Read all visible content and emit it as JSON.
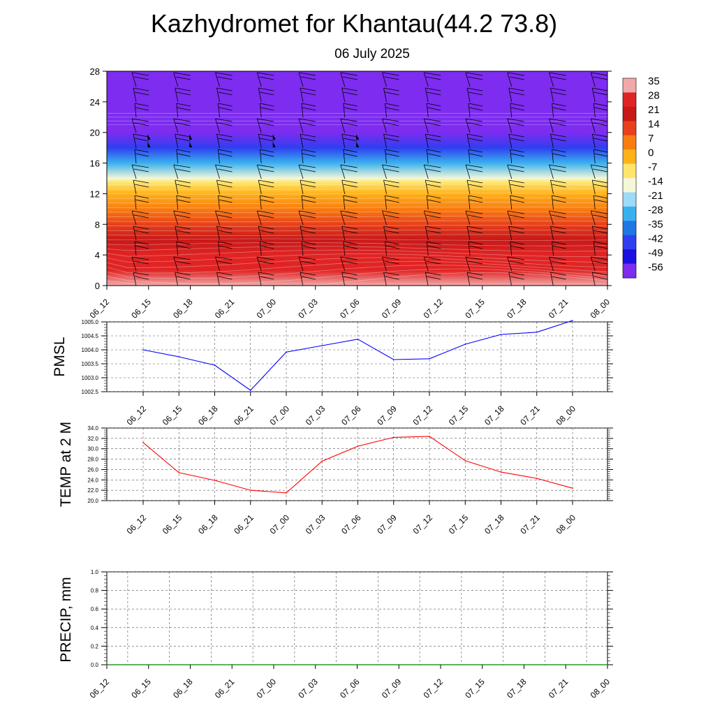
{
  "title": "Kazhydromet for Khantau(44.2 73.8)",
  "subtitle": "06 July 2025",
  "chart_data": [
    {
      "type": "heatmap",
      "name": "vertical-temperature-section",
      "ylim": [
        0,
        28
      ],
      "yticks": [
        "0",
        "4",
        "8",
        "12",
        "16",
        "20",
        "24",
        "28"
      ],
      "x": [
        "06_12",
        "06_15",
        "06_18",
        "06_21",
        "07_00",
        "07_03",
        "07_06",
        "07_09",
        "07_12",
        "07_15",
        "07_18",
        "07_21",
        "08_00"
      ],
      "colorbar": {
        "labels": [
          "35",
          "28",
          "21",
          "14",
          "7",
          "0",
          "-7",
          "-14",
          "-21",
          "-28",
          "-35",
          "-42",
          "-49",
          "-56"
        ],
        "colors": [
          "#f2a9a9",
          "#e02424",
          "#c81818",
          "#e8401a",
          "#f97c10",
          "#ffb11a",
          "#ffe66b",
          "#f4f7d8",
          "#9cdaf8",
          "#3ab1ef",
          "#1f77e4",
          "#2f3ff0",
          "#1a10e0",
          "#7d2cf0"
        ]
      },
      "temperature_profile": {
        "heights": [
          0,
          2,
          4,
          6,
          8,
          10,
          12,
          13.5,
          14,
          16,
          18,
          20,
          21,
          22,
          24,
          28
        ],
        "values": [
          33,
          30,
          26,
          21,
          14,
          7,
          0,
          -7,
          -14,
          -30,
          -42,
          -54,
          -58,
          -60,
          -62,
          -62
        ]
      }
    },
    {
      "type": "line",
      "name": "PMSL",
      "ylabel": "PMSL",
      "color": "#0000ff",
      "categories": [
        "06_12",
        "06_15",
        "06_18",
        "06_21",
        "07_00",
        "07_03",
        "07_06",
        "07_09",
        "07_12",
        "07_15",
        "07_18",
        "07_21",
        "08_00"
      ],
      "values": [
        1004.0,
        1003.75,
        1003.45,
        1002.55,
        1003.92,
        1004.15,
        1004.38,
        1003.65,
        1003.68,
        1004.2,
        1004.55,
        1004.63,
        1005.05
      ],
      "ylim": [
        1002.5,
        1005.0
      ],
      "yticks": [
        "1002.5",
        "1003.0",
        "1003.5",
        "1004.0",
        "1004.5",
        "1005.0"
      ]
    },
    {
      "type": "line",
      "name": "TEMP at 2 M",
      "ylabel": "TEMP at 2 M",
      "color": "#ff0000",
      "categories": [
        "06_12",
        "06_15",
        "06_18",
        "06_21",
        "07_00",
        "07_03",
        "07_06",
        "07_09",
        "07_12",
        "07_15",
        "07_18",
        "07_21",
        "08_00"
      ],
      "values": [
        31.2,
        25.4,
        23.9,
        22.0,
        21.5,
        27.6,
        30.5,
        32.2,
        32.4,
        27.7,
        25.5,
        24.3,
        22.4
      ],
      "ylim": [
        20.0,
        34.0
      ],
      "yticks": [
        "20.0",
        "22.0",
        "24.0",
        "26.0",
        "28.0",
        "30.0",
        "32.0",
        "34.0"
      ]
    },
    {
      "type": "line",
      "name": "PRECIP, mm",
      "ylabel": "PRECIP, mm",
      "color": "#008000",
      "categories": [
        "06_12",
        "06_15",
        "06_18",
        "06_21",
        "07_00",
        "07_03",
        "07_06",
        "07_09",
        "07_12",
        "07_15",
        "07_18",
        "07_21",
        "08_00"
      ],
      "values": [
        0,
        0,
        0,
        0,
        0,
        0,
        0,
        0,
        0,
        0,
        0,
        0,
        0
      ],
      "ylim": [
        0.0,
        1.0
      ],
      "yticks": [
        "0.0",
        "0.2",
        "0.4",
        "0.6",
        "0.8",
        "1.0"
      ]
    }
  ]
}
